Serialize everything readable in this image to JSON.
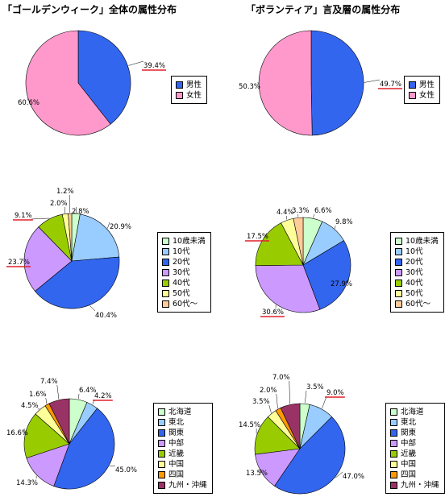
{
  "left_title": "「ゴールデンウィーク」全体の属性分布",
  "right_title": "「ボランティア」言及層の属性分布",
  "chart_data": [
    {
      "type": "pie",
      "panel": "gender-gw",
      "categories": [
        "男性",
        "女性"
      ],
      "values": [
        39.4,
        60.6
      ],
      "labels": [
        "39.4%",
        "60.6%"
      ],
      "colors": [
        "#3366ee",
        "#ff99cc"
      ],
      "underlined": [
        0
      ],
      "legend_position": "right"
    },
    {
      "type": "pie",
      "panel": "gender-vol",
      "categories": [
        "男性",
        "女性"
      ],
      "values": [
        49.7,
        50.3
      ],
      "labels": [
        "49.7%",
        "50.3%"
      ],
      "colors": [
        "#3366ee",
        "#ff99cc"
      ],
      "underlined": [
        0
      ],
      "legend_position": "right"
    },
    {
      "type": "pie",
      "panel": "age-gw",
      "categories": [
        "10歳未満",
        "10代",
        "20代",
        "30代",
        "40代",
        "50代",
        "60代～"
      ],
      "values": [
        2.8,
        20.9,
        40.4,
        23.7,
        9.1,
        2.0,
        1.2
      ],
      "labels": [
        "2.8%",
        "20.9%",
        "40.4%",
        "23.7%",
        "9.1%",
        "2.0%",
        "1.2%"
      ],
      "colors": [
        "#ccffcc",
        "#99ccff",
        "#3366ee",
        "#cc99ff",
        "#99cc00",
        "#ffff99",
        "#ffcc99"
      ],
      "underlined": [
        3,
        4
      ],
      "legend_position": "right"
    },
    {
      "type": "pie",
      "panel": "age-vol",
      "categories": [
        "10歳未満",
        "10代",
        "20代",
        "30代",
        "40代",
        "50代",
        "60代～"
      ],
      "values": [
        6.6,
        9.8,
        27.9,
        30.6,
        17.5,
        4.4,
        3.3
      ],
      "labels": [
        "6.6%",
        "9.8%",
        "27.9%",
        "30.6%",
        "17.5%",
        "4.4%",
        "3.3%"
      ],
      "colors": [
        "#ccffcc",
        "#99ccff",
        "#3366ee",
        "#cc99ff",
        "#99cc00",
        "#ffff99",
        "#ffcc99"
      ],
      "underlined": [
        3,
        4
      ],
      "legend_position": "right"
    },
    {
      "type": "pie",
      "panel": "region-gw",
      "categories": [
        "北海道",
        "東北",
        "関東",
        "中部",
        "近畿",
        "中国",
        "四国",
        "九州・沖縄"
      ],
      "values": [
        6.4,
        4.2,
        45.0,
        14.3,
        16.6,
        4.5,
        1.6,
        7.4
      ],
      "labels": [
        "6.4%",
        "4.2%",
        "45.0%",
        "14.3%",
        "16.6%",
        "4.5%",
        "1.6%",
        "7.4%"
      ],
      "colors": [
        "#ccffcc",
        "#99ccff",
        "#3366ee",
        "#cc99ff",
        "#99cc00",
        "#ffff99",
        "#ff9900",
        "#993366"
      ],
      "underlined": [
        1
      ],
      "legend_position": "right"
    },
    {
      "type": "pie",
      "panel": "region-vol",
      "categories": [
        "北海道",
        "東北",
        "関東",
        "中部",
        "近畿",
        "中国",
        "四国",
        "九州・沖縄"
      ],
      "values": [
        3.5,
        9.0,
        47.0,
        13.5,
        14.5,
        3.5,
        2.0,
        7.0
      ],
      "labels": [
        "3.5%",
        "9.0%",
        "47.0%",
        "13.5%",
        "14.5%",
        "3.5%",
        "2.0%",
        "7.0%"
      ],
      "colors": [
        "#ccffcc",
        "#99ccff",
        "#3366ee",
        "#cc99ff",
        "#99cc00",
        "#ffff99",
        "#ff9900",
        "#993366"
      ],
      "underlined": [
        1
      ],
      "legend_position": "right"
    }
  ]
}
